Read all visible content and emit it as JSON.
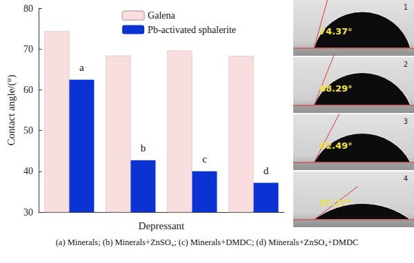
{
  "chart_data": {
    "type": "bar",
    "categories": [
      "a",
      "b",
      "c",
      "d"
    ],
    "series": [
      {
        "name": "Galena",
        "color": "#f8dede",
        "values": [
          74.37,
          68.4,
          69.6,
          68.29
        ]
      },
      {
        "name": "Pb-activated sphalerite",
        "color": "#0b33d4",
        "values": [
          62.49,
          42.7,
          40.0,
          37.17
        ]
      }
    ],
    "x_label": "Depressant",
    "y_label": "Contact angle/(°)",
    "ylim": [
      30,
      80
    ],
    "yticks": [
      30,
      40,
      50,
      60,
      70,
      80
    ],
    "grid": false,
    "legend": "upper right",
    "tick_labels": "y"
  },
  "images": [
    {
      "label": "1",
      "angle": "74.37°"
    },
    {
      "label": "2",
      "angle": "68.29°"
    },
    {
      "label": "3",
      "angle": "62.49°"
    },
    {
      "label": "4",
      "angle": "37.17°"
    }
  ],
  "caption": "(a) Minerals; (b) Minerals+ZnSO₄; (c) Minerals+DMDC; (d) Minerals+ZnSO₄+DMDC"
}
